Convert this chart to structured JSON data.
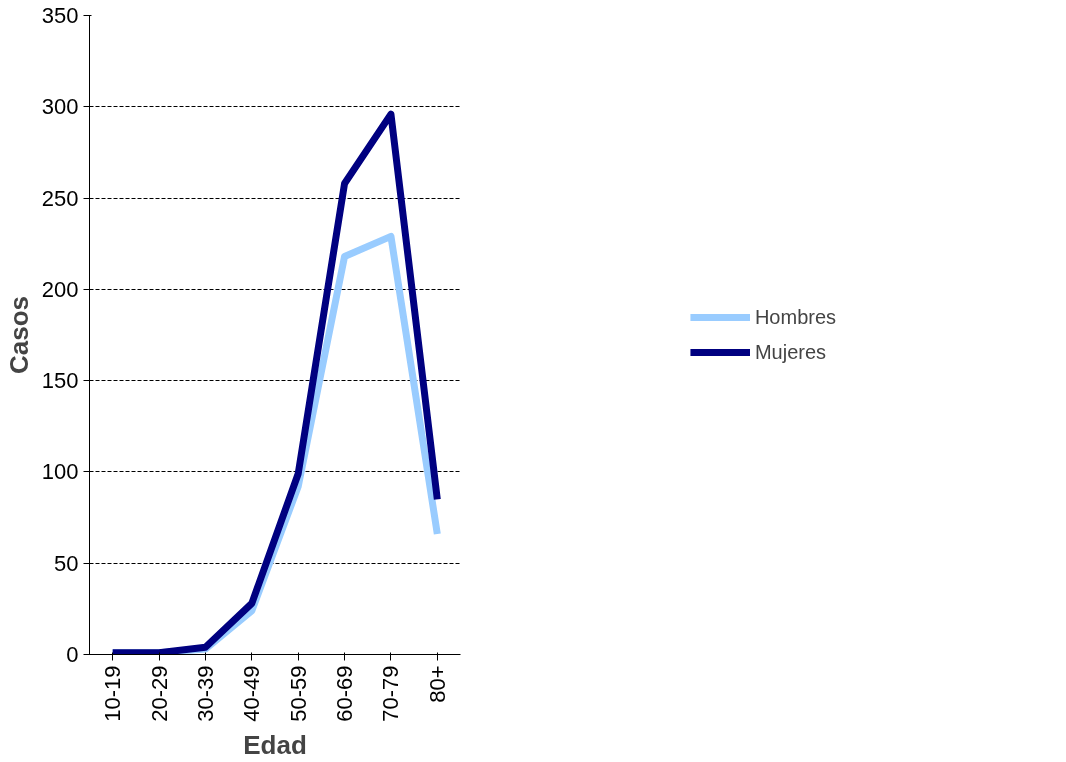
{
  "chart_data": {
    "type": "line",
    "xlabel": "Edad",
    "ylabel": "Casos",
    "categories": [
      "10-19",
      "20-29",
      "30-39",
      "40-49",
      "50-59",
      "60-69",
      "70-79",
      "80+"
    ],
    "series": [
      {
        "name": "Hombres",
        "color": "#99ccff",
        "values": [
          1,
          1,
          3,
          24,
          92,
          218,
          229,
          66
        ]
      },
      {
        "name": "Mujeres",
        "color": "#000080",
        "values": [
          1,
          1,
          4,
          28,
          99,
          258,
          296,
          85
        ]
      }
    ],
    "ylim": [
      0,
      350
    ],
    "yticks": [
      0,
      50,
      100,
      150,
      200,
      250,
      300,
      350
    ],
    "grid": "y",
    "legend": "right",
    "marker": "none",
    "line_style": "solid"
  }
}
